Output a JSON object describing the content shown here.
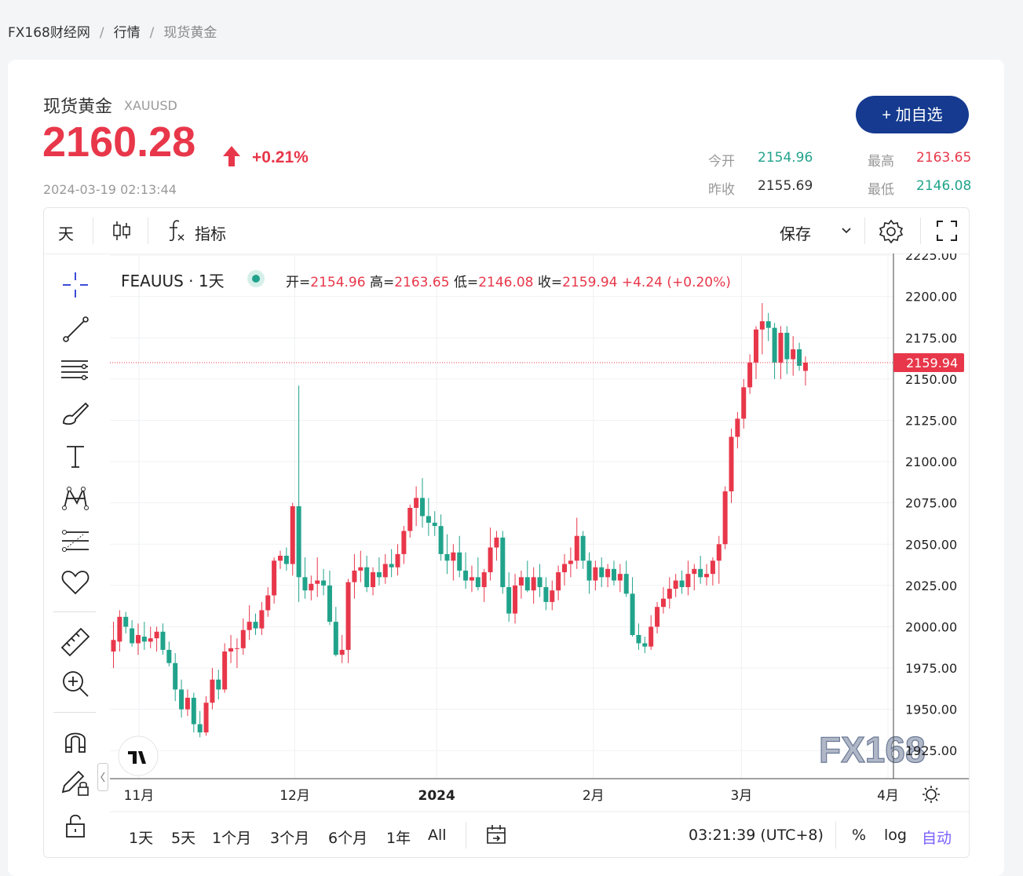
{
  "breadcrumb": {
    "home": "FX168财经网",
    "sep1": "/",
    "section": "行情",
    "sep2": "/",
    "current": "现货黄金"
  },
  "quote": {
    "name": "现货黄金",
    "symbol": "XAUUSD",
    "price": "2160.28",
    "change_pct": "+0.21%",
    "timestamp": "2024-03-19 02:13:44",
    "add_button": "+ 加自选",
    "open_label": "今开",
    "open": "2154.96",
    "high_label": "最高",
    "high": "2163.65",
    "prev_label": "昨收",
    "prev": "2155.69",
    "low_label": "最低",
    "low": "2146.08"
  },
  "toolbar": {
    "interval": "天",
    "indicators": "指标",
    "save": "保存"
  },
  "legend": {
    "symbol": "FEAUUS · 1天",
    "o_label": "开=",
    "o": "2154.96",
    "h_label": "高=",
    "h": "2163.65",
    "l_label": "低=",
    "l": "2146.08",
    "c_label": "收=",
    "c": "2159.94",
    "chg": "+4.24 (+0.20%)"
  },
  "watermark": "FX168",
  "bottom": {
    "ranges": [
      "1天",
      "5天",
      "1个月",
      "3个月",
      "6个月",
      "1年",
      "All"
    ],
    "clock": "03:21:39 (UTC+8)",
    "pct": "%",
    "log": "log",
    "auto": "自动"
  },
  "colors": {
    "up": "#e8374a",
    "down": "#21a38b",
    "accent": "#153a8f",
    "auto": "#7b61ff"
  },
  "icons": [
    "crosshair-icon",
    "trend-line-icon",
    "fib-icon",
    "brush-icon",
    "text-icon",
    "pattern-icon",
    "forecast-icon",
    "heart-icon",
    "ruler-icon",
    "zoom-in-icon",
    "magnet-icon",
    "pencil-lock-icon",
    "lock-icon",
    "candles-icon",
    "fx-icon",
    "gear-icon",
    "fullscreen-icon",
    "calendar-icon",
    "tv-logo-icon"
  ],
  "chart_data": {
    "type": "candlestick",
    "title": "FEAUUS · 1天",
    "x_ticks": [
      "11月",
      "12月",
      "2024",
      "2月",
      "3月",
      "4月"
    ],
    "y_ticks": [
      1925,
      1950,
      1975,
      2000,
      2025,
      2050,
      2075,
      2100,
      2125,
      2150,
      2175,
      2200,
      2225
    ],
    "ylim": [
      1908,
      2226
    ],
    "last_price": "2159.94",
    "last_value": 2159.94,
    "grid": true,
    "candles_ohlc": [
      [
        1985,
        2003,
        1975,
        1992
      ],
      [
        1991,
        2010,
        1985,
        2006
      ],
      [
        2006,
        2009,
        1996,
        2000
      ],
      [
        1999,
        2004,
        1988,
        1990
      ],
      [
        1990,
        2002,
        1983,
        1995
      ],
      [
        1994,
        2003,
        1986,
        1991
      ],
      [
        1991,
        2000,
        1987,
        1993
      ],
      [
        1993,
        2000,
        1985,
        1997
      ],
      [
        1997,
        2002,
        1983,
        1986
      ],
      [
        1986,
        1991,
        1976,
        1978
      ],
      [
        1978,
        1984,
        1955,
        1962
      ],
      [
        1962,
        1968,
        1945,
        1950
      ],
      [
        1950,
        1962,
        1946,
        1957
      ],
      [
        1957,
        1960,
        1936,
        1941
      ],
      [
        1941,
        1949,
        1933,
        1936
      ],
      [
        1936,
        1958,
        1934,
        1954
      ],
      [
        1954,
        1975,
        1950,
        1968
      ],
      [
        1968,
        1974,
        1956,
        1962
      ],
      [
        1962,
        1990,
        1960,
        1985
      ],
      [
        1985,
        1995,
        1978,
        1987
      ],
      [
        1987,
        1993,
        1975,
        1987
      ],
      [
        1987,
        2005,
        1983,
        1998
      ],
      [
        1998,
        2013,
        1992,
        2003
      ],
      [
        2003,
        2008,
        1995,
        1999
      ],
      [
        1999,
        2015,
        1995,
        2010
      ],
      [
        2010,
        2024,
        2006,
        2019
      ],
      [
        2019,
        2042,
        2014,
        2040
      ],
      [
        2040,
        2046,
        2035,
        2043
      ],
      [
        2043,
        2048,
        2034,
        2038
      ],
      [
        2038,
        2075,
        2031,
        2073
      ],
      [
        2073,
        2146,
        2015,
        2030
      ],
      [
        2030,
        2042,
        2017,
        2022
      ],
      [
        2022,
        2031,
        2016,
        2026
      ],
      [
        2026,
        2042,
        2018,
        2028
      ],
      [
        2028,
        2035,
        2019,
        2025
      ],
      [
        2025,
        2034,
        2001,
        2003
      ],
      [
        2003,
        2012,
        1982,
        1983
      ],
      [
        1983,
        1995,
        1978,
        1986
      ],
      [
        1986,
        2029,
        1978,
        2027
      ],
      [
        2027,
        2044,
        2017,
        2034
      ],
      [
        2034,
        2046,
        2027,
        2036
      ],
      [
        2036,
        2043,
        2021,
        2024
      ],
      [
        2024,
        2036,
        2019,
        2033
      ],
      [
        2033,
        2042,
        2025,
        2030
      ],
      [
        2030,
        2044,
        2026,
        2038
      ],
      [
        2038,
        2047,
        2030,
        2036
      ],
      [
        2036,
        2050,
        2031,
        2044
      ],
      [
        2044,
        2061,
        2038,
        2058
      ],
      [
        2058,
        2074,
        2054,
        2072
      ],
      [
        2072,
        2085,
        2061,
        2078
      ],
      [
        2078,
        2090,
        2060,
        2067
      ],
      [
        2067,
        2078,
        2055,
        2063
      ],
      [
        2063,
        2070,
        2055,
        2061
      ],
      [
        2061,
        2068,
        2040,
        2044
      ],
      [
        2044,
        2056,
        2032,
        2040
      ],
      [
        2040,
        2050,
        2028,
        2045
      ],
      [
        2045,
        2055,
        2030,
        2034
      ],
      [
        2034,
        2045,
        2023,
        2028
      ],
      [
        2028,
        2037,
        2021,
        2030
      ],
      [
        2030,
        2042,
        2022,
        2024
      ],
      [
        2024,
        2035,
        2015,
        2033
      ],
      [
        2033,
        2060,
        2028,
        2048
      ],
      [
        2048,
        2058,
        2040,
        2054
      ],
      [
        2054,
        2058,
        2020,
        2024
      ],
      [
        2024,
        2033,
        2003,
        2008
      ],
      [
        2008,
        2032,
        2002,
        2025
      ],
      [
        2025,
        2034,
        2017,
        2030
      ],
      [
        2030,
        2040,
        2021,
        2022
      ],
      [
        2022,
        2036,
        2014,
        2030
      ],
      [
        2030,
        2038,
        2018,
        2024
      ],
      [
        2024,
        2030,
        2010,
        2015
      ],
      [
        2015,
        2028,
        2010,
        2022
      ],
      [
        2022,
        2037,
        2016,
        2033
      ],
      [
        2033,
        2044,
        2025,
        2038
      ],
      [
        2038,
        2048,
        2030,
        2040
      ],
      [
        2040,
        2066,
        2035,
        2055
      ],
      [
        2055,
        2058,
        2035,
        2040
      ],
      [
        2040,
        2045,
        2020,
        2028
      ],
      [
        2028,
        2040,
        2022,
        2036
      ],
      [
        2036,
        2042,
        2024,
        2030
      ],
      [
        2030,
        2038,
        2024,
        2035
      ],
      [
        2035,
        2040,
        2025,
        2028
      ],
      [
        2028,
        2038,
        2021,
        2032
      ],
      [
        2032,
        2040,
        2018,
        2020
      ],
      [
        2020,
        2030,
        1994,
        1995
      ],
      [
        1995,
        2002,
        1986,
        1990
      ],
      [
        1990,
        1994,
        1984,
        1988
      ],
      [
        1988,
        2007,
        1986,
        2000
      ],
      [
        2000,
        2015,
        1996,
        2012
      ],
      [
        2012,
        2024,
        2008,
        2017
      ],
      [
        2017,
        2030,
        2011,
        2023
      ],
      [
        2023,
        2032,
        2018,
        2028
      ],
      [
        2028,
        2034,
        2020,
        2024
      ],
      [
        2024,
        2040,
        2019,
        2032
      ],
      [
        2032,
        2038,
        2022,
        2035
      ],
      [
        2035,
        2043,
        2026,
        2030
      ],
      [
        2030,
        2038,
        2025,
        2032
      ],
      [
        2032,
        2042,
        2025,
        2040
      ],
      [
        2040,
        2055,
        2026,
        2050
      ],
      [
        2050,
        2085,
        2047,
        2082
      ],
      [
        2082,
        2120,
        2075,
        2115
      ],
      [
        2115,
        2130,
        2108,
        2126
      ],
      [
        2126,
        2150,
        2120,
        2145
      ],
      [
        2145,
        2165,
        2141,
        2160
      ],
      [
        2160,
        2182,
        2150,
        2180
      ],
      [
        2180,
        2196,
        2165,
        2185
      ],
      [
        2185,
        2190,
        2173,
        2181
      ],
      [
        2181,
        2184,
        2150,
        2160
      ],
      [
        2160,
        2182,
        2150,
        2178
      ],
      [
        2178,
        2182,
        2153,
        2162
      ],
      [
        2162,
        2176,
        2152,
        2168
      ],
      [
        2168,
        2172,
        2155,
        2158
      ],
      [
        2154.96,
        2163.65,
        2146.08,
        2159.94
      ]
    ]
  }
}
